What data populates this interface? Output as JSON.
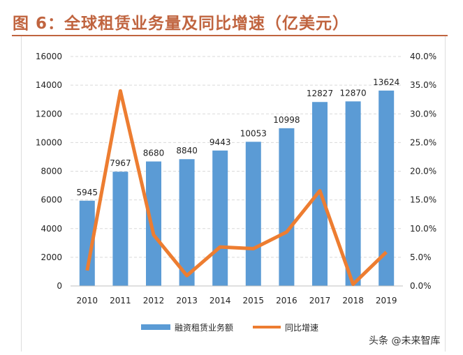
{
  "title": "图 6：全球租赁业务量及同比增速（亿美元）",
  "watermark": "头条 @未来智库",
  "chart_data": {
    "type": "bar+line",
    "categories": [
      "2010",
      "2011",
      "2012",
      "2013",
      "2014",
      "2015",
      "2016",
      "2017",
      "2018",
      "2019"
    ],
    "series": [
      {
        "name": "融资租赁业务额",
        "type": "bar",
        "axis": "left",
        "color": "#5b9bd5",
        "values": [
          5945,
          7967,
          8680,
          8840,
          9443,
          10053,
          10998,
          12827,
          12870,
          13624
        ]
      },
      {
        "name": "同比增速",
        "type": "line",
        "axis": "right",
        "color": "#ed7d31",
        "values": [
          2.7,
          34.0,
          8.9,
          1.8,
          6.8,
          6.5,
          9.4,
          16.6,
          0.3,
          5.9
        ]
      }
    ],
    "left_axis": {
      "range": [
        0,
        16000
      ],
      "ticks": [
        "0",
        "2000",
        "4000",
        "6000",
        "8000",
        "10000",
        "12000",
        "14000",
        "16000"
      ]
    },
    "right_axis": {
      "range": [
        0,
        40
      ],
      "ticks": [
        "0.0%",
        "5.0%",
        "10.0%",
        "15.0%",
        "20.0%",
        "25.0%",
        "30.0%",
        "35.0%",
        "40.0%"
      ]
    },
    "grid": "dashed horizontal",
    "legend": "bottom"
  }
}
